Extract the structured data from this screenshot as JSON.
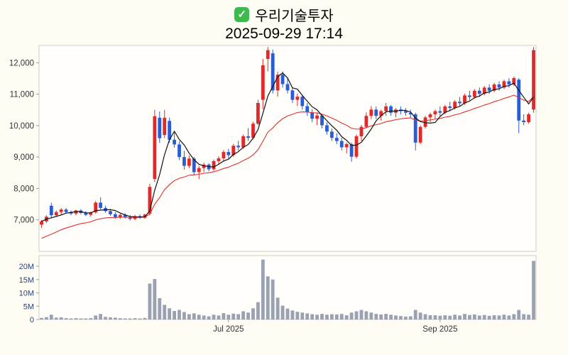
{
  "icons": {
    "check_glyph": "✓",
    "check_name": "green-check-icon"
  },
  "chart_data": {
    "type": "candlestick",
    "title": "우리기술투자",
    "subtitle": "2025-09-29 17:14",
    "price_axis": {
      "range": [
        6000,
        12550
      ],
      "ticks": [
        7000,
        8000,
        9000,
        10000,
        11000,
        12000
      ]
    },
    "volume_axis": {
      "range": [
        0,
        24
      ],
      "ticks": [
        0,
        5,
        10,
        15,
        20
      ],
      "unit": "M"
    },
    "x_ticks": [
      {
        "index": 38,
        "label": "Jul 2025"
      },
      {
        "index": 81,
        "label": "Sep 2025"
      }
    ],
    "overlays": {
      "sma_window": 5,
      "ema_alpha": 0.1,
      "ema_seed": 6350
    },
    "colors": {
      "up": "#e02a2a",
      "down": "#2a5cd8",
      "sma": "#111111",
      "ema": "#e03030",
      "volume": "#99a1b3",
      "axis_text": "#333333",
      "volume_axis_text": "#27427a",
      "border": "#cccccc",
      "pane": "#fffefb",
      "background": "#fffdf3",
      "check_green": "#3dba4e"
    },
    "candles_format": [
      "open",
      "high",
      "low",
      "close",
      "volume_millions"
    ],
    "candles": [
      [
        6850,
        7000,
        6750,
        6950,
        0.6
      ],
      [
        6950,
        7150,
        6900,
        7100,
        0.9
      ],
      [
        7450,
        7550,
        7050,
        7150,
        1.8
      ],
      [
        7150,
        7300,
        7100,
        7250,
        0.7
      ],
      [
        7250,
        7380,
        7150,
        7330,
        0.8
      ],
      [
        7330,
        7380,
        7200,
        7250,
        0.5
      ],
      [
        7250,
        7300,
        7150,
        7200,
        0.4
      ],
      [
        7200,
        7320,
        7150,
        7300,
        0.5
      ],
      [
        7300,
        7340,
        7180,
        7220,
        0.4
      ],
      [
        7220,
        7280,
        7120,
        7160,
        0.4
      ],
      [
        7160,
        7260,
        7100,
        7240,
        0.5
      ],
      [
        7240,
        7600,
        7200,
        7550,
        1.5
      ],
      [
        7550,
        7720,
        7330,
        7380,
        2.1
      ],
      [
        7380,
        7450,
        7230,
        7280,
        1.0
      ],
      [
        7280,
        7350,
        7130,
        7180,
        0.8
      ],
      [
        7180,
        7250,
        7040,
        7090,
        0.7
      ],
      [
        7090,
        7200,
        7030,
        7160,
        0.5
      ],
      [
        7160,
        7210,
        7040,
        7080,
        0.4
      ],
      [
        7080,
        7150,
        6980,
        7030,
        0.4
      ],
      [
        7030,
        7160,
        6990,
        7120,
        0.5
      ],
      [
        7120,
        7180,
        7030,
        7070,
        0.4
      ],
      [
        7070,
        7200,
        7030,
        7170,
        0.6
      ],
      [
        7200,
        8150,
        7150,
        8050,
        13.5
      ],
      [
        8300,
        10500,
        8200,
        10300,
        15.2
      ],
      [
        10250,
        10450,
        9450,
        9600,
        8.0
      ],
      [
        9700,
        10500,
        9600,
        10250,
        5.5
      ],
      [
        10150,
        10250,
        9450,
        9550,
        4.2
      ],
      [
        9550,
        9800,
        9300,
        9400,
        3.2
      ],
      [
        9400,
        9500,
        8900,
        9000,
        3.6
      ],
      [
        9000,
        9200,
        8600,
        8720,
        2.8
      ],
      [
        8720,
        9050,
        8650,
        8950,
        2.0
      ],
      [
        8950,
        9000,
        8420,
        8520,
        2.3
      ],
      [
        8520,
        8720,
        8300,
        8650,
        1.8
      ],
      [
        8650,
        8820,
        8520,
        8760,
        1.5
      ],
      [
        8760,
        8800,
        8540,
        8610,
        1.2
      ],
      [
        8610,
        8920,
        8560,
        8870,
        1.8
      ],
      [
        8870,
        9020,
        8760,
        8960,
        1.5
      ],
      [
        8960,
        9220,
        8860,
        9160,
        2.4
      ],
      [
        9160,
        9260,
        8950,
        9060,
        1.8
      ],
      [
        9060,
        9420,
        9010,
        9360,
        2.2
      ],
      [
        9360,
        9520,
        9210,
        9310,
        2.0
      ],
      [
        9310,
        9720,
        9260,
        9660,
        3.1
      ],
      [
        9660,
        9920,
        9510,
        9610,
        2.6
      ],
      [
        9610,
        10120,
        9560,
        10060,
        4.2
      ],
      [
        10060,
        10820,
        10010,
        10720,
        6.5
      ],
      [
        10820,
        12120,
        10520,
        11920,
        22.5
      ],
      [
        12120,
        12500,
        11720,
        12400,
        16.2
      ],
      [
        12300,
        12420,
        11020,
        11120,
        15.0
      ],
      [
        11120,
        11720,
        10920,
        11620,
        8.2
      ],
      [
        11620,
        11720,
        11210,
        11320,
        5.2
      ],
      [
        11320,
        11520,
        11020,
        11120,
        4.1
      ],
      [
        11120,
        11220,
        10720,
        10820,
        3.4
      ],
      [
        10820,
        11020,
        10620,
        10920,
        2.9
      ],
      [
        10920,
        10970,
        10510,
        10620,
        2.6
      ],
      [
        10620,
        10720,
        10310,
        10420,
        2.3
      ],
      [
        10420,
        10520,
        10110,
        10220,
        2.0
      ],
      [
        10220,
        10420,
        10010,
        10320,
        1.8
      ],
      [
        10320,
        10370,
        9910,
        10010,
        2.1
      ],
      [
        10010,
        10110,
        9710,
        9810,
        1.8
      ],
      [
        9810,
        9910,
        9510,
        9610,
        2.0
      ],
      [
        9610,
        9760,
        9410,
        9510,
        1.9
      ],
      [
        9510,
        9610,
        9210,
        9310,
        2.1
      ],
      [
        9310,
        9460,
        9110,
        9410,
        1.6
      ],
      [
        9410,
        9460,
        8850,
        9010,
        2.6
      ],
      [
        9010,
        9720,
        8960,
        9660,
        3.1
      ],
      [
        9660,
        10020,
        9510,
        9960,
        3.6
      ],
      [
        9960,
        10420,
        9910,
        10310,
        3.1
      ],
      [
        10310,
        10620,
        10210,
        10510,
        2.6
      ],
      [
        10510,
        10610,
        10210,
        10310,
        2.1
      ],
      [
        10310,
        10510,
        10160,
        10460,
        1.9
      ],
      [
        10460,
        10720,
        10310,
        10610,
        2.1
      ],
      [
        10610,
        10660,
        10310,
        10410,
        1.8
      ],
      [
        10410,
        10560,
        10260,
        10510,
        1.5
      ],
      [
        10510,
        10610,
        10360,
        10460,
        1.3
      ],
      [
        10460,
        10560,
        10310,
        10410,
        1.1
      ],
      [
        10410,
        10510,
        10260,
        10360,
        1.2
      ],
      [
        10360,
        10410,
        9210,
        9460,
        3.6
      ],
      [
        9460,
        10010,
        9410,
        9960,
        2.6
      ],
      [
        9960,
        10310,
        9910,
        10260,
        2.0
      ],
      [
        10260,
        10410,
        10110,
        10360,
        1.6
      ],
      [
        10360,
        10510,
        10210,
        10460,
        1.6
      ],
      [
        10460,
        10610,
        10310,
        10410,
        1.4
      ],
      [
        10410,
        10660,
        10360,
        10610,
        1.6
      ],
      [
        10610,
        10760,
        10460,
        10560,
        1.4
      ],
      [
        10560,
        10810,
        10510,
        10760,
        1.8
      ],
      [
        10760,
        10910,
        10610,
        10710,
        1.5
      ],
      [
        10710,
        11010,
        10660,
        10960,
        2.1
      ],
      [
        10960,
        11110,
        10810,
        10910,
        1.7
      ],
      [
        10910,
        11160,
        10860,
        11110,
        1.9
      ],
      [
        11110,
        11210,
        10910,
        11010,
        1.5
      ],
      [
        11010,
        11260,
        10960,
        11210,
        1.7
      ],
      [
        11210,
        11310,
        11010,
        11110,
        1.4
      ],
      [
        11110,
        11360,
        11060,
        11310,
        1.6
      ],
      [
        11310,
        11410,
        11110,
        11210,
        1.5
      ],
      [
        11210,
        11460,
        11160,
        11410,
        1.8
      ],
      [
        11410,
        11510,
        11210,
        11310,
        1.5
      ],
      [
        11310,
        11560,
        11260,
        11510,
        2.0
      ],
      [
        11460,
        11510,
        9760,
        10160,
        3.6
      ],
      [
        10160,
        10360,
        10010,
        10110,
        2.0
      ],
      [
        10110,
        10410,
        10060,
        10360,
        1.8
      ],
      [
        10510,
        12500,
        10410,
        12400,
        22.0
      ]
    ]
  }
}
